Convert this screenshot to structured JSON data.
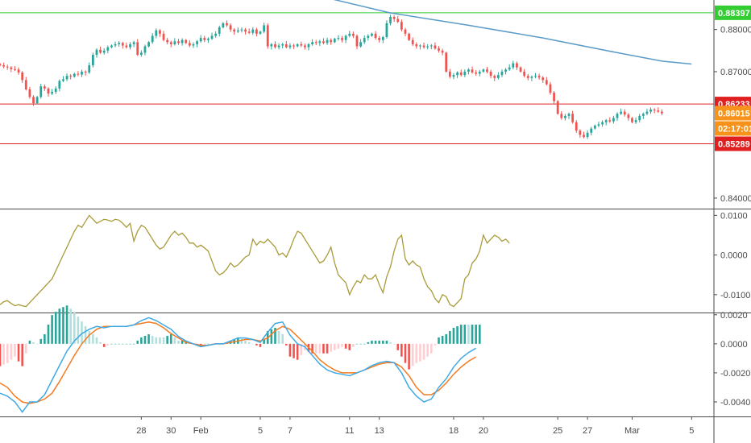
{
  "chart_data": {
    "type": "candlestick",
    "x_axis": {
      "ticks": [
        {
          "label": "28",
          "x": 28
        },
        {
          "label": "30",
          "x": 30
        },
        {
          "label": "Feb",
          "x": 32
        },
        {
          "label": "5",
          "x": 36
        },
        {
          "label": "7",
          "x": 38
        },
        {
          "label": "11",
          "x": 42
        },
        {
          "label": "13",
          "x": 44
        },
        {
          "label": "18",
          "x": 49
        },
        {
          "label": "20",
          "x": 51
        },
        {
          "label": "25",
          "x": 56
        },
        {
          "label": "27",
          "x": 58
        },
        {
          "label": "Mar",
          "x": 61
        },
        {
          "label": "5",
          "x": 65
        }
      ],
      "xlim": [
        18.5,
        66.5
      ]
    },
    "price_panel": {
      "ylim": [
        0.8375,
        0.887
      ],
      "ticks": [
        "0.88000",
        "0.87000",
        "0.84000"
      ],
      "tick_values": [
        0.88,
        0.87,
        0.84
      ],
      "horizontal_lines": [
        {
          "value": 0.88397,
          "color": "#33cc33",
          "label": "0.88397"
        },
        {
          "value": 0.86233,
          "color": "#e02020",
          "label": "0.86233"
        },
        {
          "value": 0.85289,
          "color": "#e02020",
          "label": "0.85289"
        }
      ],
      "current_price": {
        "value": 0.86015,
        "label": "0.86015",
        "color": "#f7931a"
      },
      "countdown": {
        "label": "02:17:01",
        "color": "#f7931a"
      },
      "moving_average": {
        "color": "#5b9bc8",
        "points": [
          [
            40.5,
            0.8875
          ],
          [
            44.7,
            0.88397
          ],
          [
            50,
            0.881
          ],
          [
            55,
            0.878
          ],
          [
            60,
            0.8745
          ],
          [
            63,
            0.8725
          ],
          [
            65,
            0.8718
          ]
        ],
        "x": [
          40.5,
          44.7,
          50,
          55,
          60,
          63,
          65
        ],
        "y": [
          0.8875,
          0.88397,
          0.881,
          0.878,
          0.8745,
          0.8725,
          0.8718
        ]
      },
      "candles_x_start": 18.5,
      "candles_x_step": 0.25,
      "closes": [
        0.8715,
        0.8712,
        0.871,
        0.8706,
        0.8705,
        0.8698,
        0.868,
        0.8658,
        0.864,
        0.8625,
        0.864,
        0.8665,
        0.866,
        0.8648,
        0.8652,
        0.866,
        0.8678,
        0.8682,
        0.869,
        0.8688,
        0.8695,
        0.8693,
        0.87,
        0.8698,
        0.8715,
        0.874,
        0.8752,
        0.8745,
        0.875,
        0.8758,
        0.8762,
        0.8765,
        0.8768,
        0.8762,
        0.8758,
        0.8765,
        0.877,
        0.874,
        0.8745,
        0.876,
        0.877,
        0.8785,
        0.8798,
        0.879,
        0.8775,
        0.877,
        0.8765,
        0.8772,
        0.8768,
        0.8775,
        0.8768,
        0.8762,
        0.8765,
        0.8772,
        0.878,
        0.8775,
        0.8778,
        0.8785,
        0.879,
        0.8805,
        0.8815,
        0.881,
        0.88,
        0.8795,
        0.8798,
        0.88,
        0.8795,
        0.8792,
        0.88,
        0.879,
        0.8795,
        0.881,
        0.876,
        0.8765,
        0.8758,
        0.8762,
        0.8765,
        0.8758,
        0.8762,
        0.876,
        0.8765,
        0.8762,
        0.8758,
        0.8765,
        0.877,
        0.8768,
        0.8772,
        0.8768,
        0.8775,
        0.877,
        0.8778,
        0.878,
        0.8775,
        0.8785,
        0.879,
        0.8785,
        0.876,
        0.877,
        0.878,
        0.8785,
        0.879,
        0.878,
        0.8775,
        0.8782,
        0.8815,
        0.883,
        0.8825,
        0.8818,
        0.88,
        0.879,
        0.8775,
        0.8765,
        0.876,
        0.8762,
        0.8758,
        0.876,
        0.8762,
        0.8755,
        0.875,
        0.8745,
        0.87,
        0.8688,
        0.8692,
        0.8698,
        0.8692,
        0.87,
        0.8705,
        0.8698,
        0.8695,
        0.87,
        0.8705,
        0.87,
        0.869,
        0.8685,
        0.8692,
        0.87,
        0.8705,
        0.871,
        0.872,
        0.871,
        0.87,
        0.869,
        0.8685,
        0.8688,
        0.869,
        0.8686,
        0.868,
        0.867,
        0.865,
        0.863,
        0.86,
        0.859,
        0.8595,
        0.86,
        0.858,
        0.856,
        0.855,
        0.8545,
        0.8555,
        0.8565,
        0.8572,
        0.8575,
        0.858,
        0.8585,
        0.8582,
        0.859,
        0.86,
        0.8605,
        0.8598,
        0.859,
        0.858,
        0.8585,
        0.8595,
        0.86,
        0.8605,
        0.861,
        0.8608,
        0.8605,
        0.8601
      ],
      "highs_offset": 0.0008,
      "lows_offset": 0.0008
    },
    "oscillator_panel": {
      "ylim": [
        -0.0145,
        0.0115
      ],
      "ticks": [
        "0.0100",
        "0.0000",
        "-0.0100"
      ],
      "tick_values": [
        0.01,
        0.0,
        -0.01
      ],
      "color": "#a89b3a",
      "x_start": 18.5,
      "x_step": 0.25,
      "values": [
        -0.0125,
        -0.0118,
        -0.0115,
        -0.0122,
        -0.0128,
        -0.0125,
        -0.0128,
        -0.013,
        -0.012,
        -0.011,
        -0.01,
        -0.009,
        -0.008,
        -0.007,
        -0.006,
        -0.004,
        -0.002,
        0.0,
        0.002,
        0.004,
        0.006,
        0.0075,
        0.007,
        0.0085,
        0.01,
        0.009,
        0.008,
        0.0085,
        0.009,
        0.0088,
        0.0085,
        0.009,
        0.0088,
        0.008,
        0.007,
        0.008,
        0.0035,
        0.006,
        0.0075,
        0.007,
        0.0055,
        0.004,
        0.0025,
        0.0015,
        0.002,
        0.0035,
        0.005,
        0.006,
        0.005,
        0.0055,
        0.0045,
        0.003,
        0.003,
        0.002,
        0.0025,
        0.0018,
        0.001,
        -0.0015,
        -0.004,
        -0.005,
        -0.0045,
        -0.0035,
        -0.002,
        -0.003,
        -0.0025,
        -0.0015,
        -0.0005,
        0.0,
        0.004,
        0.0025,
        0.0035,
        0.003,
        0.004,
        0.003,
        0.002,
        0.0,
        0.0005,
        -0.0005,
        0.0015,
        0.004,
        0.006,
        0.0055,
        0.004,
        0.0025,
        0.001,
        -0.0005,
        -0.002,
        -0.0015,
        0.0,
        0.002,
        -0.002,
        -0.005,
        -0.006,
        -0.007,
        -0.01,
        -0.008,
        -0.0065,
        -0.007,
        -0.005,
        -0.006,
        -0.006,
        -0.005,
        -0.0075,
        -0.0095,
        -0.0055,
        -0.003,
        0.001,
        0.004,
        0.005,
        -0.001,
        -0.0025,
        -0.0015,
        -0.0025,
        -0.003,
        -0.006,
        -0.008,
        -0.009,
        -0.011,
        -0.012,
        -0.01,
        -0.0105,
        -0.0125,
        -0.013,
        -0.012,
        -0.011,
        -0.006,
        -0.005,
        -0.002,
        -0.001,
        0.001,
        0.005,
        0.003,
        0.004,
        0.005,
        0.0045,
        0.0035,
        0.004,
        0.003
      ],
      "n_points": 138
    },
    "macd_panel": {
      "ylim": [
        -0.005,
        0.0021
      ],
      "ticks": [
        "0.0020",
        "0.0000",
        "-0.0020",
        "-0.0040"
      ],
      "tick_values": [
        0.002,
        0.0,
        -0.002,
        -0.004
      ],
      "macd_color": "#3fa9e6",
      "signal_color": "#f47b20",
      "x_start": 18.5,
      "x_step": 0.5,
      "macd": [
        -0.0034,
        -0.0036,
        -0.004,
        -0.0047,
        -0.004,
        -0.004,
        -0.0035,
        -0.0025,
        -0.0015,
        -0.0005,
        0.0002,
        0.0007,
        0.001,
        0.0012,
        0.0011,
        0.0012,
        0.0012,
        0.0012,
        0.0013,
        0.0016,
        0.0018,
        0.0016,
        0.0013,
        0.001,
        0.0005,
        0.0002,
        0.0,
        -0.0002,
        -0.0001,
        0.0,
        0.0,
        0.0002,
        0.0004,
        0.0004,
        0.0003,
        0.0001,
        0.0008,
        0.0014,
        0.0015,
        0.0006,
        0.0,
        -0.0002,
        -0.0008,
        -0.0014,
        -0.0018,
        -0.002,
        -0.0021,
        -0.0022,
        -0.002,
        -0.0018,
        -0.0015,
        -0.0013,
        -0.0012,
        -0.0013,
        -0.002,
        -0.003,
        -0.0036,
        -0.004,
        -0.0038,
        -0.003,
        -0.0024,
        -0.0016,
        -0.001,
        -0.0006,
        -0.0003
      ],
      "signal": [
        -0.0027,
        -0.003,
        -0.0036,
        -0.004,
        -0.0041,
        -0.004,
        -0.0038,
        -0.0034,
        -0.0026,
        -0.0017,
        -0.0008,
        0.0,
        0.0006,
        0.001,
        0.0012,
        0.0012,
        0.0012,
        0.0012,
        0.0013,
        0.0014,
        0.0015,
        0.0014,
        0.0011,
        0.0007,
        0.0004,
        0.0001,
        0.0,
        -0.0001,
        -0.0001,
        0.0,
        0.0,
        0.0001,
        0.0002,
        0.0003,
        0.0003,
        0.0002,
        0.0004,
        0.0009,
        0.0012,
        0.001,
        0.0005,
        0.0,
        -0.0005,
        -0.0011,
        -0.0015,
        -0.0018,
        -0.002,
        -0.002,
        -0.002,
        -0.0018,
        -0.0016,
        -0.0014,
        -0.0013,
        -0.0013,
        -0.0016,
        -0.0022,
        -0.003,
        -0.0035,
        -0.0035,
        -0.0032,
        -0.0027,
        -0.0021,
        -0.0016,
        -0.0012,
        -0.0009
      ],
      "histogram_colors": {
        "pos_up": "#26a69a",
        "pos_down": "#b2dfdb",
        "neg_down": "#ef5350",
        "neg_up": "#ffcdd2"
      }
    }
  }
}
